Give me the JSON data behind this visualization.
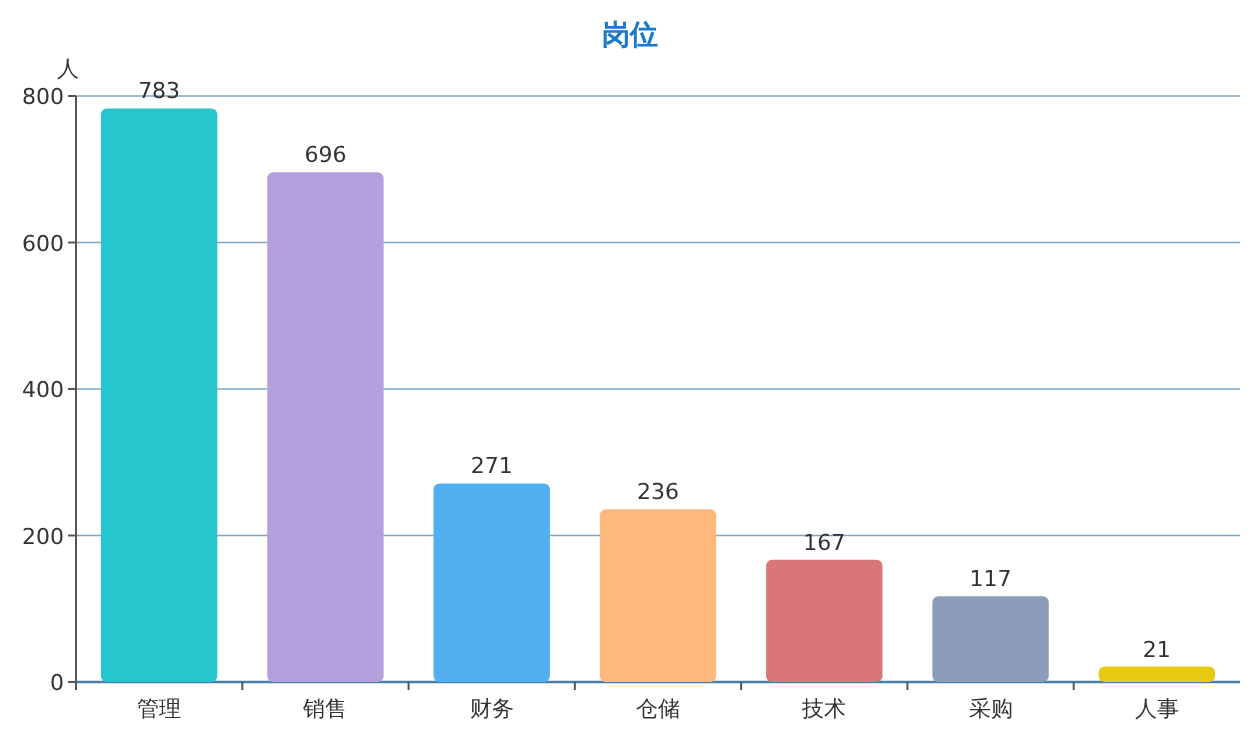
{
  "chart_data": {
    "type": "bar",
    "title": "岗位",
    "ylabel": "人",
    "categories": [
      "管理",
      "销售",
      "财务",
      "仓储",
      "技术",
      "采购",
      "人事"
    ],
    "values": [
      783,
      696,
      271,
      236,
      167,
      117,
      21
    ],
    "colors": [
      "#27c5cd",
      "#b3a0dc",
      "#52aff0",
      "#fdb97c",
      "#d8767b",
      "#8c9cb9",
      "#e6cb12"
    ],
    "ylim": [
      0,
      800
    ],
    "yticks": [
      0,
      200,
      400,
      600,
      800
    ],
    "grid": "y",
    "data_labels": true
  }
}
